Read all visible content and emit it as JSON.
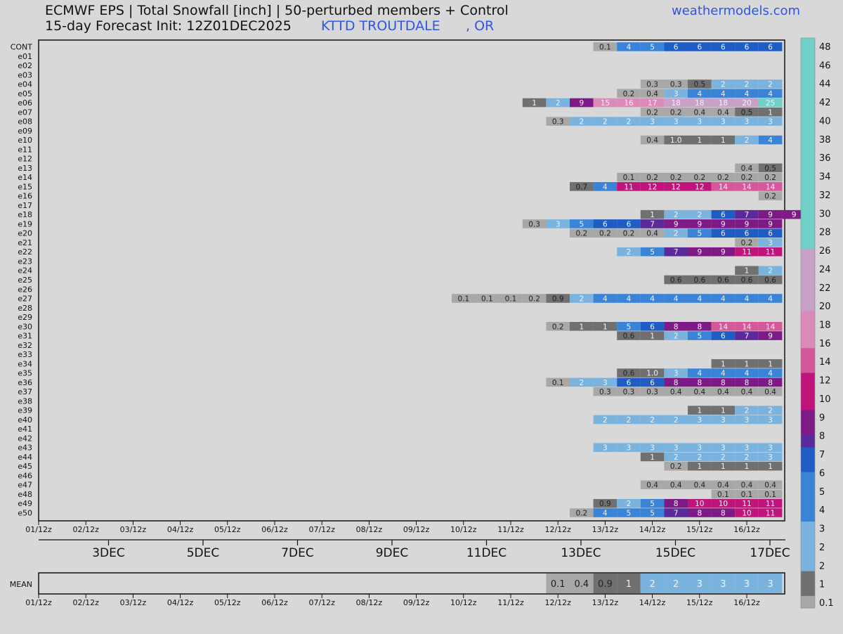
{
  "header": {
    "title_line1": "ECMWF EPS | Total Snowfall [inch] | 50-perturbed members + Control",
    "title_line2": "15-day Forecast Init: 12Z01DEC2025",
    "station": "KTTD TROUTDALE",
    "state": ", OR",
    "website": "weathermodels.com"
  },
  "chart_data": {
    "type": "heatmap",
    "x_ticks": [
      "01/12z",
      "02/12z",
      "03/12z",
      "04/12z",
      "05/12z",
      "06/12z",
      "07/12z",
      "08/12z",
      "09/12z",
      "10/12z",
      "11/12z",
      "12/12z",
      "13/12z",
      "14/12z",
      "15/12z",
      "16/12z"
    ],
    "date_labels": [
      "3DEC",
      "5DEC",
      "7DEC",
      "9DEC",
      "11DEC",
      "13DEC",
      "15DEC",
      "17DEC"
    ],
    "members": [
      "CONT",
      "e01",
      "e02",
      "e03",
      "e04",
      "e05",
      "e06",
      "e07",
      "e08",
      "e09",
      "e10",
      "e11",
      "e12",
      "e13",
      "e14",
      "e15",
      "e16",
      "e17",
      "e18",
      "e19",
      "e20",
      "e21",
      "e22",
      "e23",
      "e24",
      "e25",
      "e26",
      "e27",
      "e28",
      "e29",
      "e30",
      "e31",
      "e32",
      "e33",
      "e34",
      "e35",
      "e36",
      "e37",
      "e38",
      "e39",
      "e40",
      "e41",
      "e42",
      "e43",
      "e44",
      "e45",
      "e46",
      "e47",
      "e48",
      "e49",
      "e50"
    ],
    "step_hours": 12,
    "start": "01/12z",
    "cells": {
      "CONT": [
        [
          13.0,
          "0.1"
        ],
        [
          13.5,
          "4"
        ],
        [
          14,
          "5"
        ],
        [
          14.5,
          "6"
        ],
        [
          15,
          "6"
        ],
        [
          15.5,
          "6"
        ],
        [
          16,
          "6"
        ],
        [
          16.5,
          "6"
        ]
      ],
      "e04": [
        [
          14,
          "0.3"
        ],
        [
          14.5,
          "0.3"
        ],
        [
          15,
          "0.5"
        ],
        [
          15.5,
          "2"
        ],
        [
          16,
          "2"
        ],
        [
          16.5,
          "2"
        ]
      ],
      "e05": [
        [
          13.5,
          "0.2"
        ],
        [
          14,
          "0.4"
        ],
        [
          14.5,
          "3"
        ],
        [
          15,
          "4"
        ],
        [
          15.5,
          "4"
        ],
        [
          16,
          "4"
        ],
        [
          16.5,
          "4"
        ]
      ],
      "e06": [
        [
          11.5,
          "1"
        ],
        [
          12,
          "2"
        ],
        [
          12.5,
          "9"
        ],
        [
          13,
          "15"
        ],
        [
          13.5,
          "16"
        ],
        [
          14,
          "17"
        ],
        [
          14.5,
          "18"
        ],
        [
          15,
          "18"
        ],
        [
          15.5,
          "18"
        ],
        [
          16,
          "20"
        ],
        [
          16.5,
          "25"
        ]
      ],
      "e07": [
        [
          14,
          "0.2"
        ],
        [
          14.5,
          "0.2"
        ],
        [
          15,
          "0.4"
        ],
        [
          15.5,
          "0.4"
        ],
        [
          16,
          "0.5"
        ],
        [
          16.5,
          "1"
        ]
      ],
      "e08": [
        [
          12,
          "0.3"
        ],
        [
          12.5,
          "2"
        ],
        [
          13,
          "2"
        ],
        [
          13.5,
          "2"
        ],
        [
          14,
          "3"
        ],
        [
          14.5,
          "3"
        ],
        [
          15,
          "3"
        ],
        [
          15.5,
          "3"
        ],
        [
          16,
          "3"
        ],
        [
          16.5,
          "3"
        ]
      ],
      "e10": [
        [
          14,
          "0.4"
        ],
        [
          14.5,
          "1.0"
        ],
        [
          15,
          "1"
        ],
        [
          15.5,
          "1"
        ],
        [
          16,
          "2"
        ],
        [
          16.5,
          "4"
        ]
      ],
      "e13": [
        [
          16,
          "0.4"
        ],
        [
          16.5,
          "0.5"
        ]
      ],
      "e14": [
        [
          13.5,
          "0.1"
        ],
        [
          14,
          "0.2"
        ],
        [
          14.5,
          "0.2"
        ],
        [
          15,
          "0.2"
        ],
        [
          15.5,
          "0.2"
        ],
        [
          16,
          "0.2"
        ],
        [
          16.5,
          "0.2"
        ]
      ],
      "e15": [
        [
          12.5,
          "0.7"
        ],
        [
          13,
          "4"
        ],
        [
          13.5,
          "11"
        ],
        [
          14,
          "12"
        ],
        [
          14.5,
          "12"
        ],
        [
          15,
          "12"
        ],
        [
          15.5,
          "14"
        ],
        [
          16,
          "14"
        ],
        [
          16.5,
          "14"
        ]
      ],
      "e16": [
        [
          16.5,
          "0.2"
        ]
      ],
      "e18": [
        [
          14,
          "1"
        ],
        [
          14.5,
          "2"
        ],
        [
          15,
          "2"
        ],
        [
          15.5,
          "6"
        ],
        [
          16,
          "7"
        ],
        [
          16.5,
          "9"
        ],
        [
          17,
          "9"
        ]
      ],
      "e19": [
        [
          11.5,
          "0.3"
        ],
        [
          12,
          "3"
        ],
        [
          12.5,
          "5"
        ],
        [
          13,
          "6"
        ],
        [
          13.5,
          "6"
        ],
        [
          14,
          "7"
        ],
        [
          14.5,
          "9"
        ],
        [
          15,
          "9"
        ],
        [
          15.5,
          "9"
        ],
        [
          16,
          "9"
        ],
        [
          16.5,
          "9"
        ]
      ],
      "e20": [
        [
          12.5,
          "0.2"
        ],
        [
          13,
          "0.2"
        ],
        [
          13.5,
          "0.2"
        ],
        [
          14,
          "0.4"
        ],
        [
          14.5,
          "2"
        ],
        [
          15,
          "5"
        ],
        [
          15.5,
          "6"
        ],
        [
          16,
          "6"
        ],
        [
          16.5,
          "6"
        ]
      ],
      "e21": [
        [
          16,
          "0.2"
        ],
        [
          16.5,
          "3"
        ]
      ],
      "e22": [
        [
          13.5,
          "2"
        ],
        [
          14,
          "5"
        ],
        [
          14.5,
          "7"
        ],
        [
          15,
          "9"
        ],
        [
          15.5,
          "9"
        ],
        [
          16,
          "11"
        ],
        [
          16.5,
          "11"
        ]
      ],
      "e24": [
        [
          16,
          "1"
        ],
        [
          16.5,
          "2"
        ]
      ],
      "e25": [
        [
          14.5,
          "0.6"
        ],
        [
          15,
          "0.6"
        ],
        [
          15.5,
          "0.6"
        ],
        [
          16,
          "0.6"
        ],
        [
          16.5,
          "0.6"
        ]
      ],
      "e27": [
        [
          10,
          "0.1"
        ],
        [
          10.5,
          "0.1"
        ],
        [
          11,
          "0.1"
        ],
        [
          11.5,
          "0.2"
        ],
        [
          12,
          "0.9"
        ],
        [
          12.5,
          "2"
        ],
        [
          13,
          "4"
        ],
        [
          13.5,
          "4"
        ],
        [
          14,
          "4"
        ],
        [
          14.5,
          "4"
        ],
        [
          15,
          "4"
        ],
        [
          15.5,
          "4"
        ],
        [
          16,
          "4"
        ],
        [
          16.5,
          "4"
        ]
      ],
      "e30": [
        [
          12,
          "0.2"
        ],
        [
          12.5,
          "1"
        ],
        [
          13,
          "1"
        ],
        [
          13.5,
          "5"
        ],
        [
          14,
          "6"
        ],
        [
          14.5,
          "8"
        ],
        [
          15,
          "8"
        ],
        [
          15.5,
          "14"
        ],
        [
          16,
          "14"
        ],
        [
          16.5,
          "14"
        ]
      ],
      "e31": [
        [
          13.5,
          "0.6"
        ],
        [
          14,
          "1"
        ],
        [
          14.5,
          "2"
        ],
        [
          15,
          "5"
        ],
        [
          15.5,
          "6"
        ],
        [
          16,
          "7"
        ],
        [
          16.5,
          "9"
        ]
      ],
      "e34": [
        [
          15.5,
          "1"
        ],
        [
          16,
          "1"
        ],
        [
          16.5,
          "1"
        ]
      ],
      "e35": [
        [
          13.5,
          "0.6"
        ],
        [
          14,
          "1.0"
        ],
        [
          14.5,
          "3"
        ],
        [
          15,
          "4"
        ],
        [
          15.5,
          "4"
        ],
        [
          16,
          "4"
        ],
        [
          16.5,
          "4"
        ]
      ],
      "e36": [
        [
          12,
          "0.1"
        ],
        [
          12.5,
          "2"
        ],
        [
          13,
          "3"
        ],
        [
          13.5,
          "6"
        ],
        [
          14,
          "6"
        ],
        [
          14.5,
          "8"
        ],
        [
          15,
          "8"
        ],
        [
          15.5,
          "8"
        ],
        [
          16,
          "8"
        ],
        [
          16.5,
          "8"
        ]
      ],
      "e37": [
        [
          13,
          "0.3"
        ],
        [
          13.5,
          "0.3"
        ],
        [
          14,
          "0.3"
        ],
        [
          14.5,
          "0.4"
        ],
        [
          15,
          "0.4"
        ],
        [
          15.5,
          "0.4"
        ],
        [
          16,
          "0.4"
        ],
        [
          16.5,
          "0.4"
        ]
      ],
      "e39": [
        [
          15,
          "1"
        ],
        [
          15.5,
          "1"
        ],
        [
          16,
          "2"
        ],
        [
          16.5,
          "2"
        ]
      ],
      "e40": [
        [
          13,
          "2"
        ],
        [
          13.5,
          "2"
        ],
        [
          14,
          "2"
        ],
        [
          14.5,
          "2"
        ],
        [
          15,
          "3"
        ],
        [
          15.5,
          "3"
        ],
        [
          16,
          "3"
        ],
        [
          16.5,
          "3"
        ]
      ],
      "e43": [
        [
          13,
          "3"
        ],
        [
          13.5,
          "3"
        ],
        [
          14,
          "3"
        ],
        [
          14.5,
          "3"
        ],
        [
          15,
          "3"
        ],
        [
          15.5,
          "3"
        ],
        [
          16,
          "3"
        ],
        [
          16.5,
          "3"
        ]
      ],
      "e44": [
        [
          14,
          "1"
        ],
        [
          14.5,
          "2"
        ],
        [
          15,
          "2"
        ],
        [
          15.5,
          "2"
        ],
        [
          16,
          "2"
        ],
        [
          16.5,
          "3"
        ]
      ],
      "e45": [
        [
          14.5,
          "0.2"
        ],
        [
          15,
          "1"
        ],
        [
          15.5,
          "1"
        ],
        [
          16,
          "1"
        ],
        [
          16.5,
          "1"
        ]
      ],
      "e47": [
        [
          14,
          "0.4"
        ],
        [
          14.5,
          "0.4"
        ],
        [
          15,
          "0.4"
        ],
        [
          15.5,
          "0.4"
        ],
        [
          16,
          "0.4"
        ],
        [
          16.5,
          "0.4"
        ]
      ],
      "e48": [
        [
          15.5,
          "0.1"
        ],
        [
          16,
          "0.1"
        ],
        [
          16.5,
          "0.1"
        ]
      ],
      "e49": [
        [
          13,
          "0.9"
        ],
        [
          13.5,
          "2"
        ],
        [
          14,
          "5"
        ],
        [
          14.5,
          "8"
        ],
        [
          15,
          "10"
        ],
        [
          15.5,
          "10"
        ],
        [
          16,
          "11"
        ],
        [
          16.5,
          "11"
        ]
      ],
      "e50": [
        [
          12.5,
          "0.2"
        ],
        [
          13,
          "4"
        ],
        [
          13.5,
          "5"
        ],
        [
          14,
          "5"
        ],
        [
          14.5,
          "7"
        ],
        [
          15,
          "8"
        ],
        [
          15.5,
          "8"
        ],
        [
          16,
          "10"
        ],
        [
          16.5,
          "11"
        ]
      ]
    },
    "mean_label": "MEAN",
    "mean": [
      [
        12,
        "0.1"
      ],
      [
        12.5,
        "0.4"
      ],
      [
        13,
        "0.9"
      ],
      [
        13.5,
        "1"
      ],
      [
        14,
        "2"
      ],
      [
        14.5,
        "2"
      ],
      [
        15,
        "3"
      ],
      [
        15.5,
        "3"
      ],
      [
        16,
        "3"
      ],
      [
        16.5,
        "3"
      ]
    ],
    "colorbar": {
      "levels": [
        0.1,
        0.5,
        1,
        1.5,
        2,
        2.5,
        3,
        3.5,
        4,
        4.5,
        5,
        5.5,
        6,
        7,
        8,
        9,
        10,
        11,
        12,
        13,
        14,
        15,
        16,
        17,
        18,
        19,
        20,
        21,
        22,
        23,
        24,
        25,
        26,
        27,
        28,
        29,
        30,
        32,
        34,
        36,
        38,
        40,
        42,
        44,
        46,
        48
      ],
      "labels": [
        "0.1",
        "1",
        "2",
        "2",
        "3",
        "4",
        "5",
        "6",
        "7",
        "8",
        "9",
        "10",
        "12",
        "14",
        "16",
        "18",
        "20",
        "22",
        "24",
        "26",
        "28",
        "30",
        "32",
        "34",
        "36",
        "38",
        "40",
        "42",
        "44",
        "46",
        "48"
      ]
    },
    "colors": {
      "gray_light": "#a8a8a8",
      "gray_mid": "#707070",
      "gray_dark": "#444444",
      "blue_light": "#7ab4de",
      "blue_mid": "#3a84d8",
      "blue_dark": "#1f5cc4",
      "purple": "#5a2a9a",
      "violet": "#7d1a86",
      "magenta": "#c0147c",
      "pink": "#d4589a",
      "pink_light": "#dc8ab8",
      "mauve": "#c8a0c8",
      "teal": "#70d0c8"
    }
  }
}
